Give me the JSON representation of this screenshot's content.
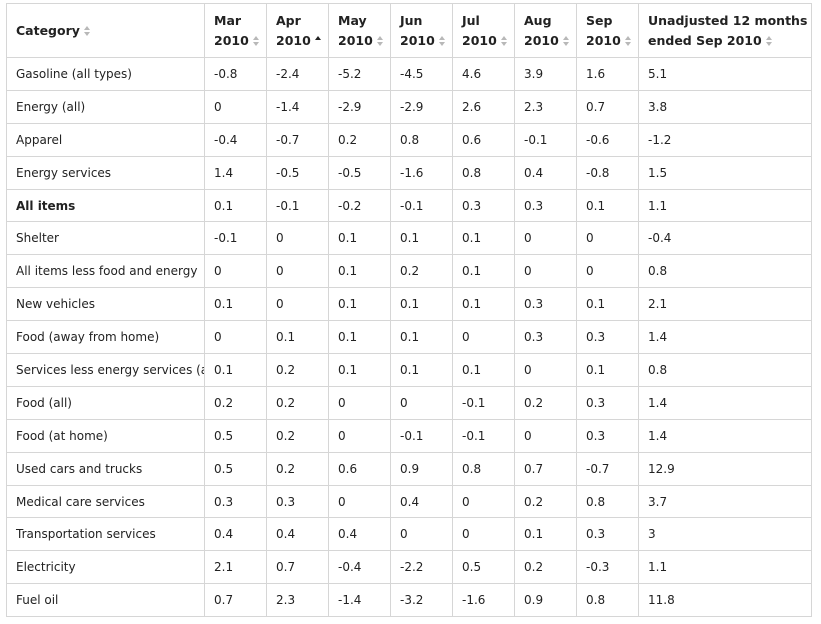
{
  "table": {
    "headers": [
      {
        "line1": "Category",
        "line2": "",
        "sort": "none"
      },
      {
        "line1": "Mar",
        "line2": "2010",
        "sort": "none"
      },
      {
        "line1": "Apr",
        "line2": "2010",
        "sort": "asc"
      },
      {
        "line1": "May",
        "line2": "2010",
        "sort": "none"
      },
      {
        "line1": "Jun",
        "line2": "2010",
        "sort": "none"
      },
      {
        "line1": "Jul",
        "line2": "2010",
        "sort": "none"
      },
      {
        "line1": "Aug",
        "line2": "2010",
        "sort": "none"
      },
      {
        "line1": "Sep",
        "line2": "2010",
        "sort": "none"
      },
      {
        "line1": "Unadjusted 12 months",
        "line2": "ended Sep 2010",
        "sort": "none"
      }
    ],
    "rows": [
      {
        "cells": [
          "Gasoline (all types)",
          "-0.8",
          "-2.4",
          "-5.2",
          "-4.5",
          "4.6",
          "3.9",
          "1.6",
          "5.1"
        ],
        "bold": false
      },
      {
        "cells": [
          "Energy (all)",
          "0",
          "-1.4",
          "-2.9",
          "-2.9",
          "2.6",
          "2.3",
          "0.7",
          "3.8"
        ],
        "bold": false
      },
      {
        "cells": [
          "Apparel",
          "-0.4",
          "-0.7",
          "0.2",
          "0.8",
          "0.6",
          "-0.1",
          "-0.6",
          "-1.2"
        ],
        "bold": false
      },
      {
        "cells": [
          "Energy services",
          "1.4",
          "-0.5",
          "-0.5",
          "-1.6",
          "0.8",
          "0.4",
          "-0.8",
          "1.5"
        ],
        "bold": false
      },
      {
        "cells": [
          "All items",
          "0.1",
          "-0.1",
          "-0.2",
          "-0.1",
          "0.3",
          "0.3",
          "0.1",
          "1.1"
        ],
        "bold": true
      },
      {
        "cells": [
          "Shelter",
          "-0.1",
          "0",
          "0.1",
          "0.1",
          "0.1",
          "0",
          "0",
          "-0.4"
        ],
        "bold": false
      },
      {
        "cells": [
          "All items less food and energy",
          "0",
          "0",
          "0.1",
          "0.2",
          "0.1",
          "0",
          "0",
          "0.8"
        ],
        "bold": false
      },
      {
        "cells": [
          "New vehicles",
          "0.1",
          "0",
          "0.1",
          "0.1",
          "0.1",
          "0.3",
          "0.1",
          "2.1"
        ],
        "bold": false
      },
      {
        "cells": [
          "Food (away from home)",
          "0",
          "0.1",
          "0.1",
          "0.1",
          "0",
          "0.3",
          "0.3",
          "1.4"
        ],
        "bold": false
      },
      {
        "cells": [
          "Services less energy services (all)",
          "0.1",
          "0.2",
          "0.1",
          "0.1",
          "0.1",
          "0",
          "0.1",
          "0.8"
        ],
        "bold": false
      },
      {
        "cells": [
          "Food (all)",
          "0.2",
          "0.2",
          "0",
          "0",
          "-0.1",
          "0.2",
          "0.3",
          "1.4"
        ],
        "bold": false
      },
      {
        "cells": [
          "Food (at home)",
          "0.5",
          "0.2",
          "0",
          "-0.1",
          "-0.1",
          "0",
          "0.3",
          "1.4"
        ],
        "bold": false
      },
      {
        "cells": [
          "Used cars and trucks",
          "0.5",
          "0.2",
          "0.6",
          "0.9",
          "0.8",
          "0.7",
          "-0.7",
          "12.9"
        ],
        "bold": false
      },
      {
        "cells": [
          "Medical care services",
          "0.3",
          "0.3",
          "0",
          "0.4",
          "0",
          "0.2",
          "0.8",
          "3.7"
        ],
        "bold": false
      },
      {
        "cells": [
          "Transportation services",
          "0.4",
          "0.4",
          "0.4",
          "0",
          "0",
          "0.1",
          "0.3",
          "3"
        ],
        "bold": false
      },
      {
        "cells": [
          "Electricity",
          "2.1",
          "0.7",
          "-0.4",
          "-2.2",
          "0.5",
          "0.2",
          "-0.3",
          "1.1"
        ],
        "bold": false
      },
      {
        "cells": [
          "Fuel oil",
          "0.7",
          "2.3",
          "-1.4",
          "-3.2",
          "-1.6",
          "0.9",
          "0.8",
          "11.8"
        ],
        "bold": false
      }
    ]
  },
  "colors": {
    "border": "#d6d6d6",
    "text": "#222222",
    "sort_inactive": "#b8b8b8",
    "sort_active": "#222222"
  }
}
